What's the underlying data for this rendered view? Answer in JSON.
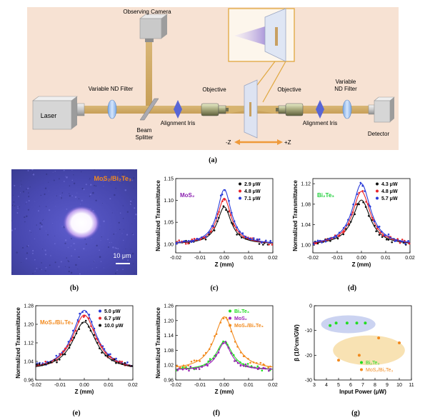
{
  "panel_a": {
    "label": "(a)",
    "components": {
      "observing_camera": "Observing Camera",
      "laser": "Laser",
      "variable_nd_filter_left": "Variable ND Filter",
      "beam_splitter_line1": "Beam",
      "beam_splitter_line2": "Splitter",
      "alignment_iris_left": "Alignment Iris",
      "objective_left": "Objective",
      "objective_right": "Objective",
      "variable_nd_filter_right_line1": "Variable",
      "variable_nd_filter_right_line2": "ND Filter",
      "alignment_iris_right": "Alignment Iris",
      "detector": "Detector",
      "minus_z": "-Z",
      "plus_z": "+Z"
    }
  },
  "panel_b": {
    "label": "(b)",
    "title": "MoS₂/Bi₂Te₃",
    "scale_bar": "10 μm"
  },
  "panel_c": {
    "label": "(c)"
  },
  "panel_d": {
    "label": "(d)"
  },
  "panel_e": {
    "label": "(e)"
  },
  "panel_f": {
    "label": "(f)"
  },
  "panel_g": {
    "label": "(g)"
  },
  "chart_data": [
    {
      "id": "c",
      "type": "scatter",
      "annotation": "MoS₂",
      "xlabel": "Z (mm)",
      "ylabel": "Normalized Transmittance",
      "xlim": [
        -0.02,
        0.02
      ],
      "ylim": [
        0.98,
        1.15
      ],
      "xticks": [
        "-0.02",
        "-0.01",
        "0.00",
        "0.01",
        "0.02"
      ],
      "yticks": [
        "1.00",
        "1.05",
        "1.10",
        "1.15"
      ],
      "legend_position": "top-right",
      "series": [
        {
          "name": "2.9 μW",
          "color": "#111111",
          "peak": 1.085,
          "width": 0.0035
        },
        {
          "name": "4.8 μW",
          "color": "#e8242b",
          "peak": 1.105,
          "width": 0.0035
        },
        {
          "name": "7.1 μW",
          "color": "#2a3bd8",
          "peak": 1.125,
          "width": 0.0035
        }
      ]
    },
    {
      "id": "d",
      "type": "scatter",
      "annotation": "Bi₂Te₃",
      "xlabel": "Z (mm)",
      "ylabel": "Normalized Transmittance",
      "xlim": [
        -0.02,
        0.02
      ],
      "ylim": [
        0.985,
        1.13
      ],
      "xticks": [
        "-0.02",
        "-0.01",
        "0.00",
        "0.01",
        "0.02"
      ],
      "yticks": [
        "1.00",
        "1.04",
        "1.08",
        "1.12"
      ],
      "legend_position": "top-right",
      "series": [
        {
          "name": "4.3 μW",
          "color": "#111111",
          "peak": 1.088,
          "width": 0.0045
        },
        {
          "name": "4.8 μW",
          "color": "#e8242b",
          "peak": 1.105,
          "width": 0.0045
        },
        {
          "name": "5.7 μW",
          "color": "#2a3bd8",
          "peak": 1.12,
          "width": 0.0045
        }
      ]
    },
    {
      "id": "e",
      "type": "scatter",
      "annotation": "MoS₂/Bi₂Te₃",
      "xlabel": "Z (mm)",
      "ylabel": "Normalized Transmittance",
      "xlim": [
        -0.02,
        0.02
      ],
      "ylim": [
        0.96,
        1.28
      ],
      "xticks": [
        "-0.02",
        "-0.01",
        "0.00",
        "0.01",
        "0.02"
      ],
      "yticks": [
        "0.96",
        "1.04",
        "1.12",
        "1.20",
        "1.28"
      ],
      "legend_position": "top-right",
      "series": [
        {
          "name": "5.0 μW",
          "color": "#2a3bd8",
          "peak": 1.26,
          "width": 0.006
        },
        {
          "name": "6.7 μW",
          "color": "#e8242b",
          "peak": 1.24,
          "width": 0.006
        },
        {
          "name": "10.0 μW",
          "color": "#111111",
          "peak": 1.21,
          "width": 0.006
        }
      ]
    },
    {
      "id": "f",
      "type": "scatter",
      "xlabel": "Z (mm)",
      "ylabel": "Normalized Transmittance",
      "xlim": [
        -0.02,
        0.02
      ],
      "ylim": [
        0.96,
        1.26
      ],
      "xticks": [
        "-0.02",
        "-0.01",
        "0.00",
        "0.01",
        "0.02"
      ],
      "yticks": [
        "0.96",
        "1.02",
        "1.08",
        "1.14",
        "1.20",
        "1.26"
      ],
      "legend_position": "top-right",
      "series": [
        {
          "name": "Bi₂Te₃",
          "color": "#22dd22",
          "peak": 1.115,
          "width": 0.004
        },
        {
          "name": "MoS₂",
          "color": "#9b22b5",
          "peak": 1.11,
          "width": 0.0035
        },
        {
          "name": "MoS₂/Bi₂Te₃",
          "color": "#f28a1e",
          "peak": 1.215,
          "width": 0.005
        }
      ]
    },
    {
      "id": "g",
      "type": "scatter",
      "xlabel": "Input Power (μW)",
      "ylabel": "β (10³cm/GW)",
      "xlim": [
        3,
        11
      ],
      "ylim": [
        -30,
        0
      ],
      "xticks": [
        "3",
        "4",
        "5",
        "6",
        "7",
        "8",
        "9",
        "10",
        "11"
      ],
      "yticks": [
        "0",
        "-10",
        "-20",
        "-30"
      ],
      "legend_position": "bottom-right",
      "series": [
        {
          "name": "Bi₂Te₃",
          "color": "#22dd22",
          "points": [
            [
              4.3,
              -8
            ],
            [
              4.8,
              -7
            ],
            [
              5.7,
              -7
            ],
            [
              6.5,
              -7
            ],
            [
              7.2,
              -7
            ]
          ]
        },
        {
          "name": "MoS₂/Bi₂Te₃",
          "color": "#f28a1e",
          "points": [
            [
              5.0,
              -22
            ],
            [
              6.7,
              -20
            ],
            [
              8.3,
              -13
            ],
            [
              10.0,
              -15
            ]
          ]
        }
      ]
    }
  ]
}
